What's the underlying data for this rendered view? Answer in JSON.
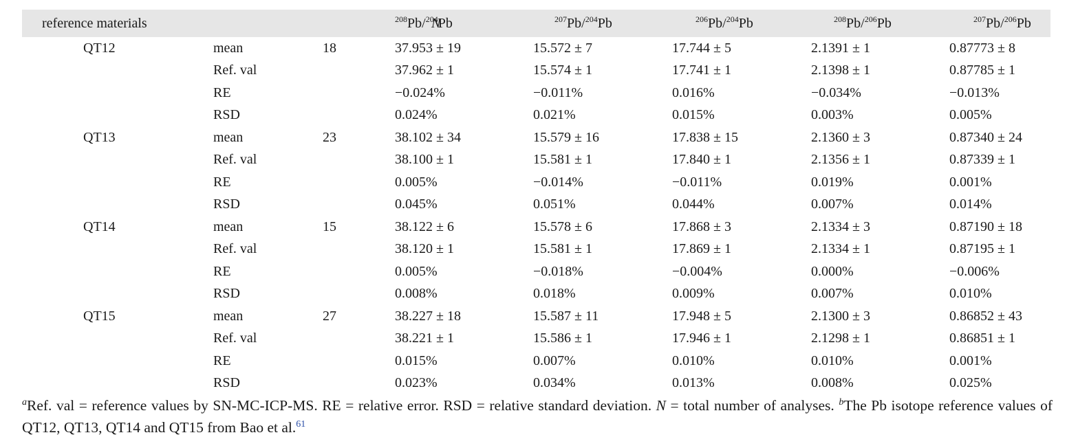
{
  "table": {
    "headers": {
      "reference_materials": "reference materials",
      "n": "N",
      "cols": [
        {
          "iso_a": "208",
          "el_a": "Pb",
          "iso_b": "204",
          "el_b": "Pb"
        },
        {
          "iso_a": "207",
          "el_a": "Pb",
          "iso_b": "204",
          "el_b": "Pb"
        },
        {
          "iso_a": "206",
          "el_a": "Pb",
          "iso_b": "204",
          "el_b": "Pb"
        },
        {
          "iso_a": "208",
          "el_a": "Pb",
          "iso_b": "206",
          "el_b": "Pb"
        },
        {
          "iso_a": "207",
          "el_a": "Pb",
          "iso_b": "206",
          "el_b": "Pb"
        }
      ]
    },
    "groups": [
      {
        "material": "QT12",
        "n": "18",
        "rows": [
          {
            "stat": "mean",
            "values": [
              "37.953 ± 19",
              "15.572 ± 7",
              "17.744 ± 5",
              "2.1391 ± 1",
              "0.87773 ± 8"
            ]
          },
          {
            "stat": "Ref. val",
            "values": [
              "37.962 ± 1",
              "15.574 ± 1",
              "17.741 ± 1",
              "2.1398 ± 1",
              "0.87785 ± 1"
            ]
          },
          {
            "stat": "RE",
            "values": [
              "−0.024%",
              "−0.011%",
              "0.016%",
              "−0.034%",
              "−0.013%"
            ]
          },
          {
            "stat": "RSD",
            "values": [
              "0.024%",
              "0.021%",
              "0.015%",
              "0.003%",
              "0.005%"
            ]
          }
        ]
      },
      {
        "material": "QT13",
        "n": "23",
        "rows": [
          {
            "stat": "mean",
            "values": [
              "38.102 ± 34",
              "15.579 ± 16",
              "17.838 ± 15",
              "2.1360 ± 3",
              "0.87340 ± 24"
            ]
          },
          {
            "stat": "Ref. val",
            "values": [
              "38.100 ± 1",
              "15.581 ± 1",
              "17.840 ± 1",
              "2.1356 ± 1",
              "0.87339 ± 1"
            ]
          },
          {
            "stat": "RE",
            "values": [
              "0.005%",
              "−0.014%",
              "−0.011%",
              "0.019%",
              "0.001%"
            ]
          },
          {
            "stat": "RSD",
            "values": [
              "0.045%",
              "0.051%",
              "0.044%",
              "0.007%",
              "0.014%"
            ]
          }
        ]
      },
      {
        "material": "QT14",
        "n": "15",
        "rows": [
          {
            "stat": "mean",
            "values": [
              "38.122 ± 6",
              "15.578 ± 6",
              "17.868 ± 3",
              "2.1334 ± 3",
              "0.87190 ± 18"
            ]
          },
          {
            "stat": "Ref. val",
            "values": [
              "38.120 ± 1",
              "15.581 ± 1",
              "17.869 ± 1",
              "2.1334 ± 1",
              "0.87195 ± 1"
            ]
          },
          {
            "stat": "RE",
            "values": [
              "0.005%",
              "−0.018%",
              "−0.004%",
              "0.000%",
              "−0.006%"
            ]
          },
          {
            "stat": "RSD",
            "values": [
              "0.008%",
              "0.018%",
              "0.009%",
              "0.007%",
              "0.010%"
            ]
          }
        ]
      },
      {
        "material": "QT15",
        "n": "27",
        "rows": [
          {
            "stat": "mean",
            "values": [
              "38.227 ± 18",
              "15.587 ± 11",
              "17.948 ± 5",
              "2.1300 ± 3",
              "0.86852 ± 43"
            ]
          },
          {
            "stat": "Ref. val",
            "values": [
              "38.221 ± 1",
              "15.586 ± 1",
              "17.946 ± 1",
              "2.1298 ± 1",
              "0.86851 ± 1"
            ]
          },
          {
            "stat": "RE",
            "values": [
              "0.015%",
              "0.007%",
              "0.010%",
              "0.010%",
              "0.001%"
            ]
          },
          {
            "stat": "RSD",
            "values": [
              "0.023%",
              "0.034%",
              "0.013%",
              "0.008%",
              "0.025%"
            ]
          }
        ]
      }
    ]
  },
  "footnote": {
    "mark_a": "a",
    "text_a1": "Ref. val = reference values by SN-MC-ICP-MS. RE = relative error. RSD = relative standard deviation. ",
    "n_symbol": "N",
    "text_a2": " = total number of analyses. ",
    "mark_b": "b",
    "text_b": "The Pb isotope reference values of QT12, QT13, QT14 and QT15 from Bao et al.",
    "ref_num": "61"
  }
}
